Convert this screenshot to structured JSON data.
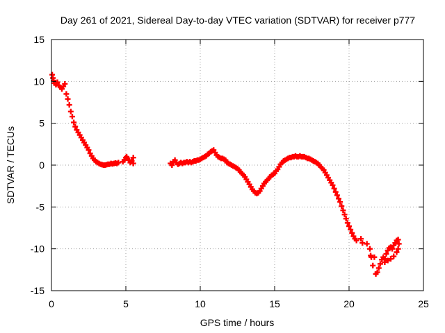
{
  "chart_data": {
    "type": "scatter",
    "title": "Day 261 of 2021, Sidereal Day-to-day VTEC variation (SDTVAR) for receiver p777",
    "xlabel": "GPS time / hours",
    "ylabel": "SDTVAR / TECUs",
    "xlim": [
      0,
      25
    ],
    "ylim": [
      -15,
      15
    ],
    "x_ticks": [
      0,
      5,
      10,
      15,
      20,
      25
    ],
    "y_ticks": [
      -15,
      -10,
      -5,
      0,
      5,
      10,
      15
    ],
    "x_tick_labels": [
      "0",
      "5",
      "10",
      "15",
      "20",
      "25"
    ],
    "y_tick_labels": [
      "-15",
      "-10",
      "-5",
      "0",
      "5",
      "10",
      "15"
    ],
    "grid": true,
    "marker": "+",
    "series": [
      {
        "name": "p777",
        "color": "#ff0000",
        "points": [
          [
            0.05,
            10.8
          ],
          [
            0.1,
            10.4
          ],
          [
            0.15,
            10.1
          ],
          [
            0.2,
            9.8
          ],
          [
            0.3,
            9.6
          ],
          [
            0.4,
            9.9
          ],
          [
            0.5,
            9.5
          ],
          [
            0.6,
            9.3
          ],
          [
            0.7,
            9.1
          ],
          [
            0.8,
            9.4
          ],
          [
            0.9,
            9.7
          ],
          [
            1.0,
            8.5
          ],
          [
            1.1,
            7.9
          ],
          [
            1.2,
            7.2
          ],
          [
            1.3,
            6.4
          ],
          [
            1.4,
            5.8
          ],
          [
            1.5,
            5.1
          ],
          [
            1.6,
            4.6
          ],
          [
            1.7,
            4.2
          ],
          [
            1.8,
            3.9
          ],
          [
            1.9,
            3.6
          ],
          [
            2.0,
            3.3
          ],
          [
            2.1,
            3.0
          ],
          [
            2.2,
            2.7
          ],
          [
            2.3,
            2.4
          ],
          [
            2.4,
            2.1
          ],
          [
            2.5,
            1.8
          ],
          [
            2.6,
            1.4
          ],
          [
            2.7,
            1.1
          ],
          [
            2.8,
            0.8
          ],
          [
            2.9,
            0.6
          ],
          [
            3.0,
            0.4
          ],
          [
            3.1,
            0.3
          ],
          [
            3.2,
            0.2
          ],
          [
            3.3,
            0.1
          ],
          [
            3.4,
            0.05
          ],
          [
            3.5,
            0.0
          ],
          [
            3.6,
            0.0
          ],
          [
            3.7,
            0.05
          ],
          [
            3.8,
            0.1
          ],
          [
            3.9,
            0.1
          ],
          [
            4.0,
            0.2
          ],
          [
            4.1,
            0.15
          ],
          [
            4.2,
            0.2
          ],
          [
            4.3,
            0.25
          ],
          [
            4.4,
            0.2
          ],
          [
            4.5,
            0.3
          ],
          [
            4.8,
            0.4
          ],
          [
            4.9,
            0.6
          ],
          [
            5.0,
            0.9
          ],
          [
            5.05,
            1.0
          ],
          [
            5.1,
            0.8
          ],
          [
            5.2,
            0.6
          ],
          [
            5.3,
            0.3
          ],
          [
            5.4,
            0.5
          ],
          [
            5.5,
            0.9
          ],
          [
            5.5,
            0.2
          ],
          [
            8.0,
            0.2
          ],
          [
            8.1,
            0.0
          ],
          [
            8.2,
            0.4
          ],
          [
            8.3,
            0.6
          ],
          [
            8.4,
            0.3
          ],
          [
            8.5,
            0.1
          ],
          [
            8.6,
            0.2
          ],
          [
            8.7,
            0.3
          ],
          [
            8.8,
            0.2
          ],
          [
            8.9,
            0.3
          ],
          [
            9.0,
            0.3
          ],
          [
            9.1,
            0.4
          ],
          [
            9.2,
            0.3
          ],
          [
            9.3,
            0.4
          ],
          [
            9.4,
            0.3
          ],
          [
            9.5,
            0.4
          ],
          [
            9.6,
            0.5
          ],
          [
            9.7,
            0.5
          ],
          [
            9.8,
            0.6
          ],
          [
            9.9,
            0.6
          ],
          [
            10.0,
            0.7
          ],
          [
            10.1,
            0.8
          ],
          [
            10.2,
            0.9
          ],
          [
            10.3,
            1.0
          ],
          [
            10.4,
            1.1
          ],
          [
            10.5,
            1.3
          ],
          [
            10.6,
            1.4
          ],
          [
            10.7,
            1.6
          ],
          [
            10.8,
            1.7
          ],
          [
            10.9,
            1.8
          ],
          [
            11.0,
            1.5
          ],
          [
            11.1,
            1.2
          ],
          [
            11.2,
            1.0
          ],
          [
            11.3,
            0.9
          ],
          [
            11.4,
            0.8
          ],
          [
            11.5,
            0.8
          ],
          [
            11.6,
            0.7
          ],
          [
            11.7,
            0.6
          ],
          [
            11.8,
            0.3
          ],
          [
            11.9,
            0.2
          ],
          [
            12.0,
            0.1
          ],
          [
            12.1,
            0.0
          ],
          [
            12.2,
            -0.1
          ],
          [
            12.3,
            -0.2
          ],
          [
            12.4,
            -0.3
          ],
          [
            12.5,
            -0.4
          ],
          [
            12.6,
            -0.6
          ],
          [
            12.7,
            -0.8
          ],
          [
            12.8,
            -1.0
          ],
          [
            12.9,
            -1.2
          ],
          [
            13.0,
            -1.4
          ],
          [
            13.1,
            -1.7
          ],
          [
            13.2,
            -2.0
          ],
          [
            13.3,
            -2.3
          ],
          [
            13.4,
            -2.6
          ],
          [
            13.5,
            -2.9
          ],
          [
            13.6,
            -3.1
          ],
          [
            13.7,
            -3.3
          ],
          [
            13.8,
            -3.4
          ],
          [
            13.9,
            -3.3
          ],
          [
            14.0,
            -3.1
          ],
          [
            14.1,
            -2.8
          ],
          [
            14.2,
            -2.5
          ],
          [
            14.3,
            -2.2
          ],
          [
            14.4,
            -2.0
          ],
          [
            14.5,
            -1.8
          ],
          [
            14.6,
            -1.6
          ],
          [
            14.7,
            -1.4
          ],
          [
            14.8,
            -1.2
          ],
          [
            14.9,
            -1.1
          ],
          [
            15.0,
            -1.0
          ],
          [
            15.1,
            -0.7
          ],
          [
            15.2,
            -0.5
          ],
          [
            15.3,
            -0.2
          ],
          [
            15.4,
            0.1
          ],
          [
            15.5,
            0.3
          ],
          [
            15.6,
            0.5
          ],
          [
            15.7,
            0.6
          ],
          [
            15.8,
            0.7
          ],
          [
            15.9,
            0.8
          ],
          [
            16.0,
            0.9
          ],
          [
            16.1,
            0.9
          ],
          [
            16.2,
            1.0
          ],
          [
            16.3,
            1.0
          ],
          [
            16.4,
            1.1
          ],
          [
            16.5,
            1.0
          ],
          [
            16.6,
            1.0
          ],
          [
            16.7,
            1.1
          ],
          [
            16.8,
            1.0
          ],
          [
            16.9,
            1.0
          ],
          [
            17.0,
            1.0
          ],
          [
            17.1,
            0.9
          ],
          [
            17.2,
            0.8
          ],
          [
            17.3,
            0.8
          ],
          [
            17.4,
            0.7
          ],
          [
            17.5,
            0.6
          ],
          [
            17.6,
            0.5
          ],
          [
            17.7,
            0.4
          ],
          [
            17.8,
            0.3
          ],
          [
            17.9,
            0.2
          ],
          [
            18.0,
            0.0
          ],
          [
            18.1,
            -0.2
          ],
          [
            18.2,
            -0.4
          ],
          [
            18.3,
            -0.6
          ],
          [
            18.4,
            -0.9
          ],
          [
            18.5,
            -1.2
          ],
          [
            18.6,
            -1.5
          ],
          [
            18.7,
            -1.8
          ],
          [
            18.8,
            -2.1
          ],
          [
            18.9,
            -2.4
          ],
          [
            19.0,
            -2.8
          ],
          [
            19.1,
            -3.2
          ],
          [
            19.2,
            -3.6
          ],
          [
            19.3,
            -4.0
          ],
          [
            19.4,
            -4.4
          ],
          [
            19.5,
            -4.9
          ],
          [
            19.6,
            -5.4
          ],
          [
            19.7,
            -5.9
          ],
          [
            19.8,
            -6.4
          ],
          [
            19.9,
            -6.9
          ],
          [
            20.0,
            -7.3
          ],
          [
            20.1,
            -7.7
          ],
          [
            20.2,
            -8.1
          ],
          [
            20.3,
            -8.5
          ],
          [
            20.4,
            -8.8
          ],
          [
            20.5,
            -9.0
          ],
          [
            20.8,
            -8.8
          ],
          [
            20.9,
            -9.3
          ],
          [
            21.2,
            -9.4
          ],
          [
            21.4,
            -10.0
          ],
          [
            21.45,
            -10.8
          ],
          [
            21.5,
            -11.0
          ],
          [
            21.6,
            -12.0
          ],
          [
            21.7,
            -11.0
          ],
          [
            21.8,
            -13.0
          ],
          [
            21.9,
            -12.8
          ],
          [
            22.0,
            -12.3
          ],
          [
            22.1,
            -11.8
          ],
          [
            22.2,
            -11.3
          ],
          [
            22.3,
            -11.0
          ],
          [
            22.4,
            -11.2
          ],
          [
            22.5,
            -10.6
          ],
          [
            22.6,
            -10.2
          ],
          [
            22.7,
            -9.9
          ],
          [
            22.8,
            -9.8
          ],
          [
            22.9,
            -10.0
          ],
          [
            23.0,
            -9.6
          ],
          [
            23.1,
            -9.3
          ],
          [
            23.2,
            -9.0
          ],
          [
            23.3,
            -8.9
          ],
          [
            23.35,
            -9.4
          ],
          [
            23.3,
            -10.0
          ],
          [
            23.2,
            -10.4
          ],
          [
            23.0,
            -10.9
          ],
          [
            22.8,
            -11.2
          ],
          [
            22.6,
            -11.4
          ],
          [
            22.4,
            -11.6
          ]
        ]
      }
    ]
  }
}
